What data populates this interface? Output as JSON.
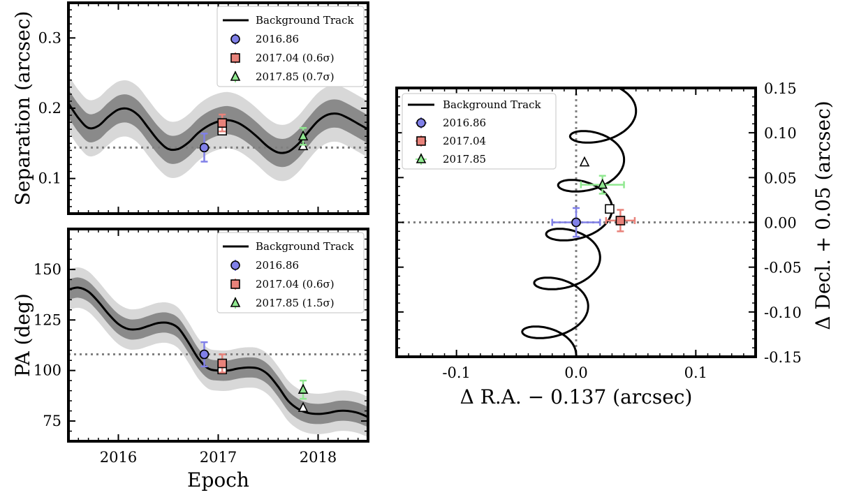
{
  "chart_data": [
    {
      "id": "separation",
      "type": "line",
      "xlabel": "",
      "ylabel": "Separation (arcsec)",
      "xlim": [
        2015.5,
        2018.5
      ],
      "ylim": [
        0.05,
        0.35
      ],
      "yticks": [
        0.1,
        0.2,
        0.3
      ],
      "ytick_labels": [
        "0.1",
        "0.2",
        "0.3"
      ],
      "xticks": [
        2016,
        2017,
        2018
      ],
      "xtick_labels": [
        "",
        "",
        ""
      ],
      "reference_line": 0.144,
      "background_track": {
        "name": "Background Track",
        "x": [
          2015.5,
          2015.6,
          2015.7,
          2015.8,
          2015.9,
          2016.0,
          2016.1,
          2016.2,
          2016.3,
          2016.4,
          2016.5,
          2016.6,
          2016.7,
          2016.8,
          2016.9,
          2017.0,
          2017.1,
          2017.2,
          2017.3,
          2017.4,
          2017.5,
          2017.6,
          2017.7,
          2017.8,
          2017.9,
          2018.0,
          2018.1,
          2018.2,
          2018.3,
          2018.4,
          2018.5
        ],
        "y": [
          0.207,
          0.186,
          0.172,
          0.175,
          0.188,
          0.198,
          0.199,
          0.19,
          0.172,
          0.154,
          0.142,
          0.142,
          0.151,
          0.165,
          0.175,
          0.181,
          0.183,
          0.179,
          0.17,
          0.158,
          0.145,
          0.137,
          0.138,
          0.149,
          0.166,
          0.182,
          0.191,
          0.192,
          0.186,
          0.178,
          0.17
        ],
        "band_1sigma": 0.02,
        "band_2sigma": 0.04
      },
      "points": [
        {
          "label": "2016.86",
          "marker": "circle",
          "color": "#8080e8",
          "x": 2016.86,
          "y": 0.144,
          "yerr": 0.02
        },
        {
          "label": "2017.04 (0.6σ)",
          "marker": "square",
          "color": "#e8827a",
          "x": 2017.04,
          "y": 0.179,
          "yerr": 0.012
        },
        {
          "label": "2017.85 (0.7σ)",
          "marker": "triangle",
          "color": "#90e890",
          "x": 2017.85,
          "y": 0.16,
          "yerr": 0.012
        }
      ],
      "track_markers": [
        {
          "marker": "circle",
          "x": 2016.86,
          "y": 0.144
        },
        {
          "marker": "square",
          "x": 2017.04,
          "y": 0.168
        },
        {
          "marker": "triangle",
          "x": 2017.85,
          "y": 0.146
        }
      ],
      "legend": {
        "placement": "top-right",
        "entries": [
          "Background Track",
          "2016.86",
          "2017.04 (0.6σ)",
          "2017.85 (0.7σ)"
        ]
      }
    },
    {
      "id": "position-angle",
      "type": "line",
      "xlabel": "Epoch",
      "ylabel": "PA (deg)",
      "xlim": [
        2015.5,
        2018.5
      ],
      "ylim": [
        65,
        170
      ],
      "yticks": [
        75,
        100,
        125,
        150
      ],
      "ytick_labels": [
        "75",
        "100",
        "125",
        "150"
      ],
      "xticks": [
        2016,
        2017,
        2018
      ],
      "xtick_labels": [
        "2016",
        "2017",
        "2018"
      ],
      "reference_line": 108,
      "background_track": {
        "name": "Background Track",
        "x": [
          2015.5,
          2015.6,
          2015.7,
          2015.8,
          2015.9,
          2016.0,
          2016.1,
          2016.2,
          2016.3,
          2016.4,
          2016.5,
          2016.6,
          2016.7,
          2016.8,
          2016.9,
          2017.0,
          2017.1,
          2017.2,
          2017.3,
          2017.4,
          2017.5,
          2017.6,
          2017.7,
          2017.8,
          2017.9,
          2018.0,
          2018.1,
          2018.2,
          2018.3,
          2018.4,
          2018.5
        ],
        "y": [
          140.0,
          141.0,
          139.0,
          134.0,
          128.0,
          123.0,
          120.5,
          120.5,
          122.0,
          123.5,
          123.5,
          121.0,
          114.0,
          106.0,
          101.0,
          100.0,
          100.0,
          101.0,
          101.5,
          101.0,
          98.0,
          92.0,
          85.0,
          81.0,
          79.0,
          78.5,
          79.0,
          80.0,
          80.0,
          79.0,
          77.0
        ],
        "band_1sigma": 5,
        "band_2sigma": 10
      },
      "points": [
        {
          "label": "2016.86",
          "marker": "circle",
          "color": "#8080e8",
          "x": 2016.86,
          "y": 108.0,
          "yerr": 6
        },
        {
          "label": "2017.04 (0.6σ)",
          "marker": "square",
          "color": "#e8827a",
          "x": 2017.04,
          "y": 103.5,
          "yerr": 4.5
        },
        {
          "label": "2017.85 (1.5σ)",
          "marker": "triangle",
          "color": "#90e890",
          "x": 2017.85,
          "y": 90.5,
          "yerr": 4.5
        }
      ],
      "track_markers": [
        {
          "marker": "circle",
          "x": 2016.86,
          "y": 108.0
        },
        {
          "marker": "square",
          "x": 2017.04,
          "y": 100.5
        },
        {
          "marker": "triangle",
          "x": 2017.85,
          "y": 81.5
        }
      ],
      "legend": {
        "placement": "top-right",
        "entries": [
          "Background Track",
          "2016.86",
          "2017.04 (0.6σ)",
          "2017.85 (1.5σ)"
        ]
      }
    },
    {
      "id": "sky-offset",
      "type": "line",
      "xlabel": "Δ R.A. − 0.137 (arcsec)",
      "ylabel": "Δ Decl. + 0.05 (arcsec)",
      "xlim": [
        -0.15,
        0.15
      ],
      "ylim": [
        -0.15,
        0.15
      ],
      "xticks": [
        -0.1,
        0,
        0.1
      ],
      "xtick_labels": [
        "-0.1",
        "0.0",
        "0.1"
      ],
      "yticks": [
        -0.15,
        -0.1,
        -0.05,
        0.0,
        0.05,
        0.1,
        0.15
      ],
      "ytick_labels": [
        "-0.15",
        "-0.10",
        "-0.05",
        "0.00",
        "0.05",
        "0.10",
        "0.15"
      ],
      "reference_x": 0,
      "reference_y": 0,
      "background_track": {
        "name": "Background Track",
        "shape": "parallax spiral",
        "x_center_start": -0.025,
        "x_center_end": 0.03,
        "y_start": -0.15,
        "y_end": 0.15,
        "loops": 5.5
      },
      "points": [
        {
          "label": "2016.86",
          "marker": "circle",
          "color": "#8080e8",
          "x": 0.0,
          "y": 0.0,
          "xerr": 0.02,
          "yerr": 0.016
        },
        {
          "label": "2017.04",
          "marker": "square",
          "color": "#e8827a",
          "x": 0.037,
          "y": 0.002,
          "xerr": 0.012,
          "yerr": 0.012
        },
        {
          "label": "2017.85",
          "marker": "triangle",
          "color": "#90e890",
          "x": 0.022,
          "y": 0.042,
          "xerr": 0.018,
          "yerr": 0.01
        }
      ],
      "track_markers": [
        {
          "marker": "circle",
          "x": 0.0,
          "y": 0.0
        },
        {
          "marker": "square",
          "x": 0.028,
          "y": 0.015
        },
        {
          "marker": "triangle",
          "x": 0.007,
          "y": 0.067
        }
      ],
      "legend": {
        "placement": "top-left",
        "entries": [
          "Background Track",
          "2016.86",
          "2017.04",
          "2017.85"
        ]
      }
    }
  ],
  "colors": {
    "band_inner": "#8a8a8a",
    "band_outer": "#d8d8d8",
    "reference_line": "#808080"
  }
}
